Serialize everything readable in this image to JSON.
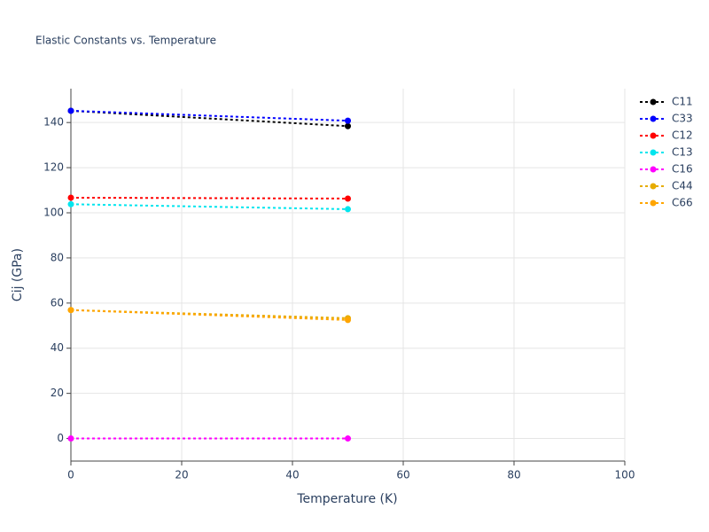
{
  "chart_data": {
    "type": "line",
    "title": "Elastic Constants vs. Temperature",
    "x_label": "Temperature (K)",
    "y_label": "Cij (GPa)",
    "x": [
      0,
      50
    ],
    "series": [
      {
        "name": "C11",
        "color": "#000000",
        "values": [
          145.2,
          138.4
        ]
      },
      {
        "name": "C33",
        "color": "#0000ff",
        "values": [
          145.2,
          140.8
        ]
      },
      {
        "name": "C12",
        "color": "#ff0000",
        "values": [
          106.7,
          106.3
        ]
      },
      {
        "name": "C13",
        "color": "#00e5ee",
        "values": [
          103.8,
          101.6
        ]
      },
      {
        "name": "C16",
        "color": "#ff00ff",
        "values": [
          0,
          0
        ]
      },
      {
        "name": "C44",
        "color": "#e6ac00",
        "values": [
          56.9,
          53.3
        ]
      },
      {
        "name": "C66",
        "color": "#ffa500",
        "values": [
          56.9,
          52.5
        ]
      }
    ],
    "xlim": [
      0,
      100
    ],
    "xticks": [
      0,
      20,
      40,
      60,
      80,
      100
    ],
    "ylim": [
      -10,
      155
    ],
    "yticks": [
      0,
      20,
      40,
      60,
      80,
      100,
      120,
      140
    ],
    "grid": true,
    "legend": "right"
  }
}
